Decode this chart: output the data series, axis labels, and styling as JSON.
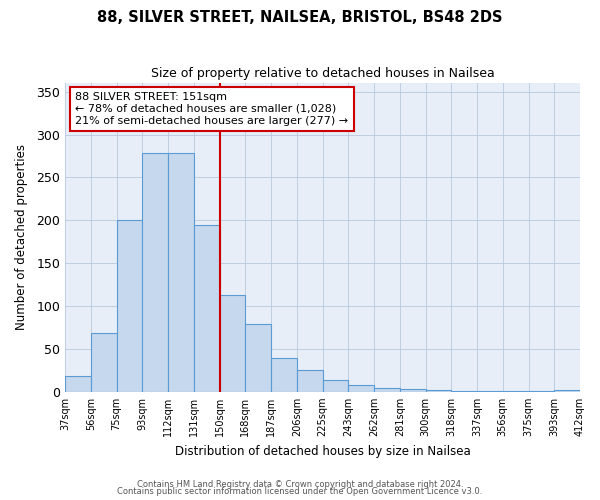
{
  "title": "88, SILVER STREET, NAILSEA, BRISTOL, BS48 2DS",
  "subtitle": "Size of property relative to detached houses in Nailsea",
  "xlabel": "Distribution of detached houses by size in Nailsea",
  "ylabel": "Number of detached properties",
  "bar_values": [
    18,
    68,
    200,
    278,
    278,
    195,
    113,
    79,
    40,
    25,
    14,
    8,
    5,
    3,
    2,
    1,
    1,
    1,
    1,
    2
  ],
  "bin_labels": [
    "37sqm",
    "56sqm",
    "75sqm",
    "93sqm",
    "112sqm",
    "131sqm",
    "150sqm",
    "168sqm",
    "187sqm",
    "206sqm",
    "225sqm",
    "243sqm",
    "262sqm",
    "281sqm",
    "300sqm",
    "318sqm",
    "337sqm",
    "356sqm",
    "375sqm",
    "393sqm",
    "412sqm"
  ],
  "bar_color": "#c5d8ed",
  "bar_edge_color": "#5b9bd5",
  "vline_color": "#cc0000",
  "annotation_title": "88 SILVER STREET: 151sqm",
  "annotation_line1": "← 78% of detached houses are smaller (1,028)",
  "annotation_line2": "21% of semi-detached houses are larger (277) →",
  "annotation_box_edge": "#cc0000",
  "ylim": [
    0,
    360
  ],
  "yticks": [
    0,
    50,
    100,
    150,
    200,
    250,
    300,
    350
  ],
  "footer1": "Contains HM Land Registry data © Crown copyright and database right 2024.",
  "footer2": "Contains public sector information licensed under the Open Government Licence v3.0.",
  "background_color": "#e8eef8"
}
